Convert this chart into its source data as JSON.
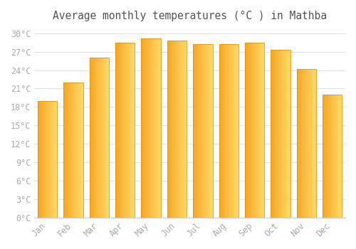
{
  "title": "Average monthly temperatures (°C ) in Mathba",
  "months": [
    "Jan",
    "Feb",
    "Mar",
    "Apr",
    "May",
    "Jun",
    "Jul",
    "Aug",
    "Sep",
    "Oct",
    "Nov",
    "Dec"
  ],
  "values": [
    19.0,
    22.0,
    26.0,
    28.5,
    29.2,
    28.8,
    28.2,
    28.2,
    28.5,
    27.3,
    24.2,
    20.0
  ],
  "bar_color_left": "#F5A623",
  "bar_color_right": "#FFD966",
  "bar_edge_color": "#E8940A",
  "ylim": [
    0,
    31
  ],
  "yticks": [
    0,
    3,
    6,
    9,
    12,
    15,
    18,
    21,
    24,
    27,
    30
  ],
  "ytick_labels": [
    "0°C",
    "3°C",
    "6°C",
    "9°C",
    "12°C",
    "15°C",
    "18°C",
    "21°C",
    "24°C",
    "27°C",
    "30°C"
  ],
  "background_color": "#ffffff",
  "grid_color": "#e0e0e0",
  "title_fontsize": 10.5,
  "tick_fontsize": 8.5,
  "tick_color": "#aaaaaa",
  "font_family": "monospace"
}
